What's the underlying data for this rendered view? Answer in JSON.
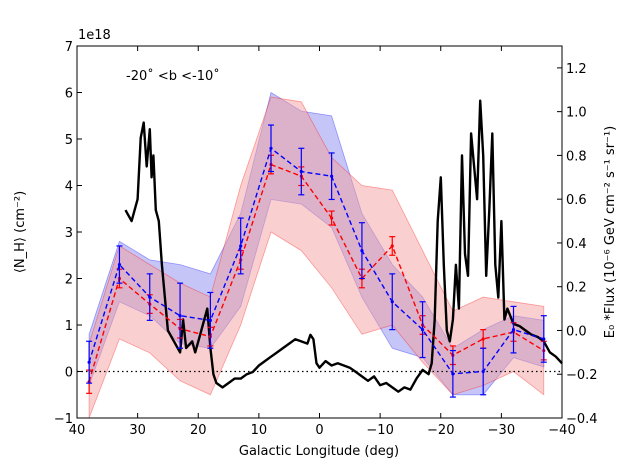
{
  "chart_data": {
    "type": "line",
    "annotation": "-20˚ <b <-10˚",
    "exponent_label": "1e18",
    "xlabel": "Galactic Longitude (deg)",
    "ylabel_left": "⟨N_H⟩ (cm⁻²)",
    "ylabel_right": "E₀ *Flux (10⁻⁶ GeV cm⁻² s⁻¹ sr⁻¹)",
    "xlim": [
      40,
      -40
    ],
    "ylim_left": [
      -1,
      7
    ],
    "ylim_right": [
      -0.4,
      1.3
    ],
    "x_ticks": [
      "40",
      "30",
      "20",
      "10",
      "0",
      "−10",
      "−20",
      "−30",
      "−40"
    ],
    "x_tick_values": [
      40,
      30,
      20,
      10,
      0,
      -10,
      -20,
      -30,
      -40
    ],
    "y_ticks_left": [
      "−1",
      "0",
      "1",
      "2",
      "3",
      "4",
      "5",
      "6",
      "7"
    ],
    "y_tick_values_left": [
      -1,
      0,
      1,
      2,
      3,
      4,
      5,
      6,
      7
    ],
    "y_ticks_right": [
      "−0.4",
      "−0.2",
      "0.0",
      "0.2",
      "0.4",
      "0.6",
      "0.8",
      "1.0",
      "1.2"
    ],
    "y_tick_values_right": [
      -0.4,
      -0.2,
      0.0,
      0.2,
      0.4,
      0.6,
      0.8,
      1.0,
      1.2
    ],
    "series": [
      {
        "name": "red model (dashed, with error bars)",
        "color": "#ff0000",
        "x": [
          38,
          33,
          28,
          23,
          18,
          13,
          8,
          3,
          -2,
          -7,
          -12,
          -17,
          -22,
          -27,
          -32,
          -37
        ],
        "y": [
          -0.22,
          2.0,
          1.45,
          0.92,
          0.75,
          2.4,
          4.45,
          4.2,
          3.3,
          2.0,
          2.7,
          1.0,
          0.35,
          0.7,
          0.85,
          0.45
        ],
        "err": [
          0.25,
          0.2,
          0.2,
          0.2,
          0.2,
          0.2,
          0.2,
          0.2,
          0.15,
          0.2,
          0.2,
          0.2,
          0.2,
          0.2,
          0.2,
          0.2
        ],
        "band_low": [
          -1.0,
          0.7,
          0.4,
          -0.2,
          -0.5,
          1.0,
          3.0,
          2.6,
          1.8,
          0.8,
          1.0,
          0.2,
          -0.5,
          -0.3,
          0.0,
          -0.5
        ],
        "band_high": [
          0.6,
          2.7,
          2.3,
          1.9,
          1.6,
          4.0,
          5.9,
          5.8,
          4.6,
          4.0,
          3.9,
          2.6,
          1.3,
          1.6,
          1.5,
          1.4
        ]
      },
      {
        "name": "blue model (dashed, with error bars)",
        "color": "#0000ff",
        "x": [
          38,
          33,
          28,
          23,
          18,
          13,
          8,
          3,
          -2,
          -7,
          -12,
          -17,
          -22,
          -27,
          -32,
          -37
        ],
        "y": [
          0.2,
          2.3,
          1.6,
          1.2,
          1.1,
          2.7,
          4.8,
          4.3,
          4.2,
          2.6,
          1.5,
          0.9,
          -0.05,
          0.0,
          0.9,
          0.7
        ],
        "err": [
          0.45,
          0.4,
          0.5,
          0.7,
          0.6,
          0.6,
          0.5,
          0.5,
          0.5,
          0.6,
          0.6,
          0.6,
          0.5,
          0.5,
          0.5,
          0.5
        ],
        "band_low": [
          -0.3,
          1.5,
          1.2,
          0.6,
          0.5,
          1.4,
          3.7,
          3.6,
          3.1,
          1.6,
          0.5,
          0.3,
          -0.5,
          -0.5,
          0.3,
          0.1
        ],
        "band_high": [
          0.8,
          2.8,
          2.4,
          2.3,
          2.1,
          3.4,
          6.0,
          5.6,
          5.5,
          3.4,
          2.3,
          1.6,
          0.5,
          0.9,
          1.2,
          1.1
        ]
      },
      {
        "name": "gamma-ray flux profile (black, right axis)",
        "color": "#000000",
        "x": [
          32,
          31,
          30,
          29.5,
          29,
          28.5,
          28,
          27.7,
          27.4,
          27,
          26.5,
          26,
          25,
          24,
          23,
          22.5,
          22,
          21,
          20.5,
          20,
          19,
          18.5,
          18,
          17.5,
          17,
          16,
          15,
          14,
          13,
          12,
          11,
          10,
          9,
          8,
          7,
          6,
          5,
          4,
          3,
          2,
          1.5,
          1,
          0.5,
          0,
          -1,
          -2,
          -3,
          -4,
          -5,
          -6,
          -7,
          -8,
          -9,
          -10,
          -11,
          -12,
          -13,
          -14,
          -15,
          -16,
          -17,
          -18,
          -18.5,
          -19,
          -19.5,
          -20,
          -20.5,
          -21,
          -21.5,
          -22,
          -22.5,
          -23,
          -23.5,
          -24,
          -24.5,
          -25,
          -25.5,
          -26,
          -26.5,
          -27,
          -27.5,
          -28,
          -28.5,
          -29,
          -29.5,
          -30,
          -30.5,
          -31,
          -32,
          -33,
          -34,
          -35,
          -36,
          -37,
          -38,
          -39,
          -40
        ],
        "y": [
          0.55,
          0.5,
          0.6,
          0.88,
          0.95,
          0.75,
          0.92,
          0.7,
          0.8,
          0.55,
          0.5,
          0.3,
          0.0,
          -0.05,
          -0.1,
          0.05,
          -0.08,
          -0.05,
          -0.1,
          -0.05,
          0.05,
          0.1,
          -0.08,
          -0.2,
          -0.24,
          -0.26,
          -0.24,
          -0.22,
          -0.22,
          -0.2,
          -0.19,
          -0.16,
          -0.14,
          -0.12,
          -0.1,
          -0.08,
          -0.06,
          -0.04,
          -0.05,
          -0.06,
          -0.02,
          -0.04,
          -0.15,
          -0.17,
          -0.14,
          -0.16,
          -0.15,
          -0.16,
          -0.17,
          -0.19,
          -0.21,
          -0.23,
          -0.21,
          -0.25,
          -0.24,
          -0.26,
          -0.28,
          -0.26,
          -0.27,
          -0.22,
          -0.18,
          -0.2,
          -0.15,
          0.05,
          0.5,
          0.7,
          0.3,
          0.0,
          -0.05,
          0.05,
          0.3,
          0.1,
          0.8,
          0.35,
          0.25,
          0.9,
          0.75,
          0.6,
          1.05,
          0.8,
          0.25,
          0.55,
          0.9,
          0.3,
          0.15,
          0.5,
          0.05,
          0.1,
          0.03,
          0.02,
          0.0,
          -0.02,
          -0.03,
          -0.05,
          -0.1,
          -0.12,
          -0.15
        ]
      }
    ],
    "reference_line": {
      "y": 0,
      "style": "dotted",
      "axis": "left"
    }
  }
}
